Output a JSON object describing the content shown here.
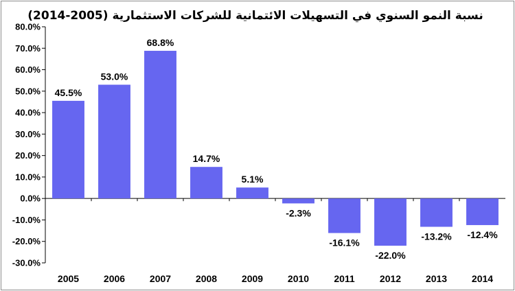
{
  "chart_data": {
    "type": "bar",
    "title": "نسبة النمو السنوي في التسهيلات الائتمانية للشركات الاستثمارية (2005-2014)",
    "categories": [
      "2005",
      "2006",
      "2007",
      "2008",
      "2009",
      "2010",
      "2011",
      "2012",
      "2013",
      "2014"
    ],
    "values": [
      45.5,
      53.0,
      68.8,
      14.7,
      5.1,
      -2.3,
      -16.1,
      -22.0,
      -13.2,
      -12.4
    ],
    "data_labels": [
      "45.5%",
      "53.0%",
      "68.8%",
      "14.7%",
      "5.1%",
      "-2.3%",
      "-16.1%",
      "-22.0%",
      "-13.2%",
      "-12.4%"
    ],
    "y_ticks": [
      80,
      70,
      60,
      50,
      40,
      30,
      20,
      10,
      0,
      -10,
      -20,
      -30
    ],
    "y_tick_labels": [
      "80.0%",
      "70.0%",
      "60.0%",
      "50.0%",
      "40.0%",
      "30.0%",
      "20.0%",
      "10.0%",
      "0.0%",
      "-10.0%",
      "-20.0%",
      "-30.0%"
    ],
    "ylim": [
      -30,
      80
    ],
    "xlabel": "",
    "ylabel": "",
    "grid": false,
    "legend": "none",
    "bar_color": "#6666f0"
  }
}
